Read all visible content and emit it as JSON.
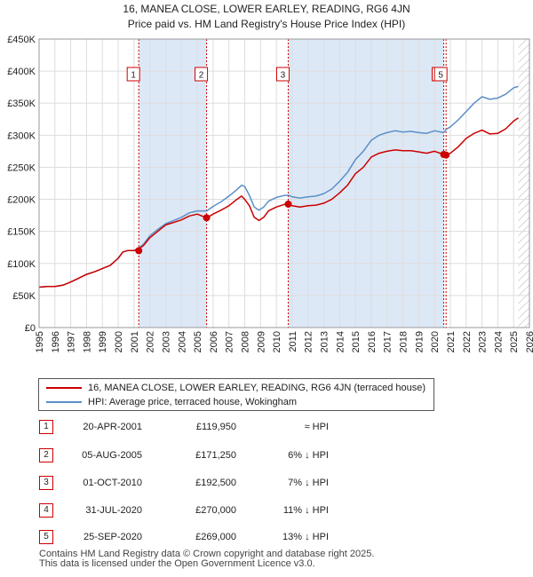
{
  "title_line1": "16, MANEA CLOSE, LOWER EARLEY, READING, RG6 4JN",
  "title_line2": "Price paid vs. HM Land Registry's House Price Index (HPI)",
  "colors": {
    "price_paid": "#cc0000",
    "hpi": "#5b8fc7",
    "shade": "#dde8f6",
    "grid": "#dddddd",
    "marker": "#cc0000"
  },
  "chart_data": {
    "type": "line",
    "title": "16, MANEA CLOSE, LOWER EARLEY, READING, RG6 4JN — Price paid vs. HM Land Registry's House Price Index (HPI)",
    "xlabel": "",
    "ylabel": "",
    "xlim": [
      1995,
      2026
    ],
    "ylim": [
      0,
      450000
    ],
    "x_ticks": [
      1995,
      1996,
      1997,
      1998,
      1999,
      2000,
      2001,
      2002,
      2003,
      2004,
      2005,
      2006,
      2007,
      2008,
      2009,
      2010,
      2011,
      2012,
      2013,
      2014,
      2015,
      2016,
      2017,
      2018,
      2019,
      2020,
      2021,
      2022,
      2023,
      2024,
      2025,
      2026
    ],
    "y_ticks": [
      {
        "value": 0,
        "label": "£0"
      },
      {
        "value": 50000,
        "label": "£50K"
      },
      {
        "value": 100000,
        "label": "£100K"
      },
      {
        "value": 150000,
        "label": "£150K"
      },
      {
        "value": 200000,
        "label": "£200K"
      },
      {
        "value": 250000,
        "label": "£250K"
      },
      {
        "value": 300000,
        "label": "£300K"
      },
      {
        "value": 350000,
        "label": "£350K"
      },
      {
        "value": 400000,
        "label": "£400K"
      },
      {
        "value": 450000,
        "label": "£450K"
      }
    ],
    "grid": true,
    "series": [
      {
        "name": "16, MANEA CLOSE, LOWER EARLEY, READING, RG6 4JN (terraced house)",
        "x": [
          1995.0,
          1995.5,
          1996.0,
          1996.5,
          1997.0,
          1997.5,
          1998.0,
          1998.5,
          1999.0,
          1999.5,
          2000.0,
          2000.3,
          2000.6,
          2001.0,
          2001.3,
          2001.6,
          2002.0,
          2002.5,
          2003.0,
          2003.5,
          2004.0,
          2004.5,
          2005.0,
          2005.6,
          2006.0,
          2006.5,
          2007.0,
          2007.5,
          2007.8,
          2008.0,
          2008.3,
          2008.6,
          2008.9,
          2009.2,
          2009.5,
          2010.0,
          2010.5,
          2010.75,
          2011.0,
          2011.5,
          2012.0,
          2012.5,
          2013.0,
          2013.5,
          2014.0,
          2014.5,
          2015.0,
          2015.5,
          2016.0,
          2016.5,
          2017.0,
          2017.5,
          2018.0,
          2018.5,
          2019.0,
          2019.5,
          2020.0,
          2020.58,
          2020.73,
          2021.0,
          2021.5,
          2022.0,
          2022.5,
          2023.0,
          2023.5,
          2024.0,
          2024.5,
          2025.0,
          2025.3
        ],
        "values": [
          63000,
          64000,
          64000,
          66000,
          71000,
          77000,
          83000,
          87000,
          92000,
          97000,
          108000,
          118000,
          120000,
          120000,
          123000,
          128000,
          140000,
          150000,
          160000,
          164000,
          168000,
          174000,
          177000,
          171000,
          177000,
          183000,
          190000,
          200000,
          205000,
          200000,
          190000,
          172000,
          167000,
          172000,
          182000,
          188000,
          192000,
          192500,
          190000,
          188000,
          190000,
          191000,
          194000,
          200000,
          210000,
          222000,
          240000,
          250000,
          266000,
          272000,
          275000,
          277000,
          276000,
          276000,
          274000,
          272000,
          275000,
          270000,
          269000,
          272000,
          282000,
          295000,
          303000,
          308000,
          302000,
          303000,
          310000,
          322000,
          327000
        ]
      },
      {
        "name": "HPI: Average price, terraced house, Wokingham",
        "x": [
          1995.0,
          1995.5,
          1996.0,
          1996.5,
          1997.0,
          1997.5,
          1998.0,
          1998.5,
          1999.0,
          1999.5,
          2000.0,
          2000.3,
          2000.6,
          2001.0,
          2001.3,
          2001.6,
          2002.0,
          2002.5,
          2003.0,
          2003.5,
          2004.0,
          2004.5,
          2005.0,
          2005.6,
          2006.0,
          2006.5,
          2007.0,
          2007.5,
          2007.8,
          2008.0,
          2008.3,
          2008.6,
          2008.9,
          2009.2,
          2009.5,
          2010.0,
          2010.5,
          2010.75,
          2011.0,
          2011.5,
          2012.0,
          2012.5,
          2013.0,
          2013.5,
          2014.0,
          2014.5,
          2015.0,
          2015.5,
          2016.0,
          2016.5,
          2017.0,
          2017.5,
          2018.0,
          2018.5,
          2019.0,
          2019.5,
          2020.0,
          2020.58,
          2020.73,
          2021.0,
          2021.5,
          2022.0,
          2022.5,
          2023.0,
          2023.5,
          2024.0,
          2024.5,
          2025.0,
          2025.3
        ],
        "values": [
          63000,
          64000,
          64000,
          66000,
          71000,
          77000,
          83000,
          87000,
          92000,
          97000,
          108000,
          118000,
          120000,
          120000,
          124000,
          130000,
          143000,
          153000,
          162000,
          167000,
          172000,
          179000,
          182000,
          182000,
          189000,
          196000,
          205000,
          215000,
          222000,
          220000,
          206000,
          188000,
          183000,
          188000,
          197000,
          203000,
          206000,
          206500,
          204000,
          202000,
          204000,
          205000,
          209000,
          216000,
          228000,
          242000,
          262000,
          275000,
          292000,
          300000,
          304000,
          307000,
          305000,
          306000,
          304000,
          303000,
          307000,
          304000,
          309000,
          313000,
          324000,
          337000,
          350000,
          360000,
          356000,
          358000,
          364000,
          374000,
          376000
        ]
      }
    ],
    "transactions": [
      {
        "id": "1",
        "x": 2001.3,
        "value": 119950
      },
      {
        "id": "2",
        "x": 2005.59,
        "value": 171250
      },
      {
        "id": "3",
        "x": 2010.75,
        "value": 192500
      },
      {
        "id": "4",
        "x": 2020.58,
        "value": 270000
      },
      {
        "id": "5",
        "x": 2020.73,
        "value": 269000
      }
    ],
    "shaded_ranges": [
      [
        2001.3,
        2005.59
      ],
      [
        2010.75,
        2020.58
      ]
    ],
    "future_hatch_from": 2025.3
  },
  "legend": {
    "price_paid_label": "16, MANEA CLOSE, LOWER EARLEY, READING, RG6 4JN (terraced house)",
    "hpi_label": "HPI: Average price, terraced house, Wokingham"
  },
  "table": [
    {
      "id": "1",
      "date": "20-APR-2001",
      "price": "£119,950",
      "relation": "≈ HPI"
    },
    {
      "id": "2",
      "date": "05-AUG-2005",
      "price": "£171,250",
      "relation": "6% ↓ HPI"
    },
    {
      "id": "3",
      "date": "01-OCT-2010",
      "price": "£192,500",
      "relation": "7% ↓ HPI"
    },
    {
      "id": "4",
      "date": "31-JUL-2020",
      "price": "£270,000",
      "relation": "11% ↓ HPI"
    },
    {
      "id": "5",
      "date": "25-SEP-2020",
      "price": "£269,000",
      "relation": "13% ↓ HPI"
    }
  ],
  "footer_line1": "Contains HM Land Registry data © Crown copyright and database right 2025.",
  "footer_line2": "This data is licensed under the Open Government Licence v3.0."
}
